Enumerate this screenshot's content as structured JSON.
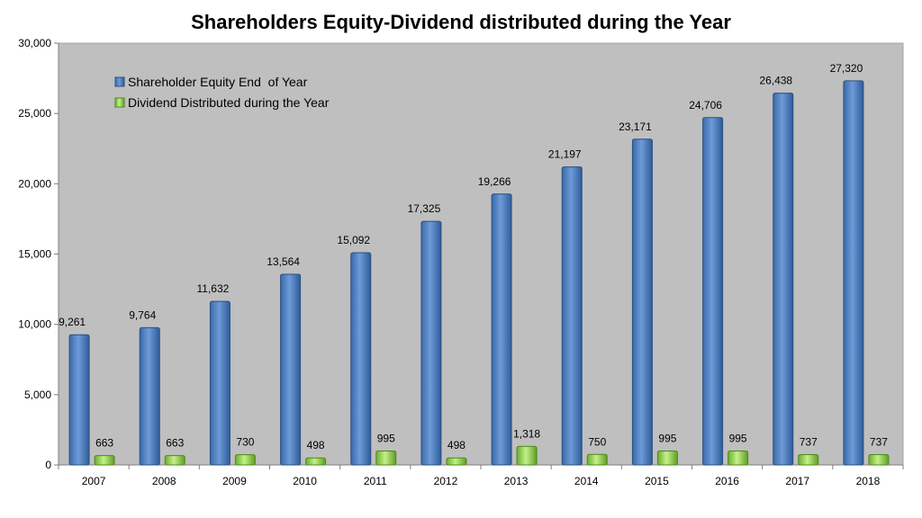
{
  "chart_data": {
    "type": "bar",
    "title": "Shareholders Equity-Dividend distributed during the Year",
    "xlabel": "",
    "ylabel": "",
    "categories": [
      "2007",
      "2008",
      "2009",
      "2010",
      "2011",
      "2012",
      "2013",
      "2014",
      "2015",
      "2016",
      "2017",
      "2018"
    ],
    "series": [
      {
        "name": "Shareholder Equity End  of Year",
        "values": [
          9261,
          9764,
          11632,
          13564,
          15092,
          17325,
          19266,
          21197,
          23171,
          24706,
          26438,
          27320
        ],
        "labels": [
          "9,261",
          "9,764",
          "11,632",
          "13,564",
          "15,092",
          "17,325",
          "19,266",
          "21,197",
          "23,171",
          "24,706",
          "26,438",
          "27,320"
        ],
        "color": "#4F81BD"
      },
      {
        "name": "Dividend Distributed during the Year",
        "values": [
          663,
          663,
          730,
          498,
          995,
          498,
          1318,
          750,
          995,
          995,
          737,
          737
        ],
        "labels": [
          "663",
          "663",
          "730",
          "498",
          "995",
          "498",
          "1,318",
          "750",
          "995",
          "995",
          "737",
          "737"
        ],
        "color": "#92D050"
      }
    ],
    "ylim": [
      0,
      30000
    ],
    "yticks": [
      0,
      5000,
      10000,
      15000,
      20000,
      25000,
      30000
    ],
    "ytick_labels": [
      "0",
      "5,000",
      "10,000",
      "15,000",
      "20,000",
      "25,000",
      "30,000"
    ],
    "grid": false,
    "legend_position": "top-left",
    "plot_background": "#BFBFBF"
  }
}
